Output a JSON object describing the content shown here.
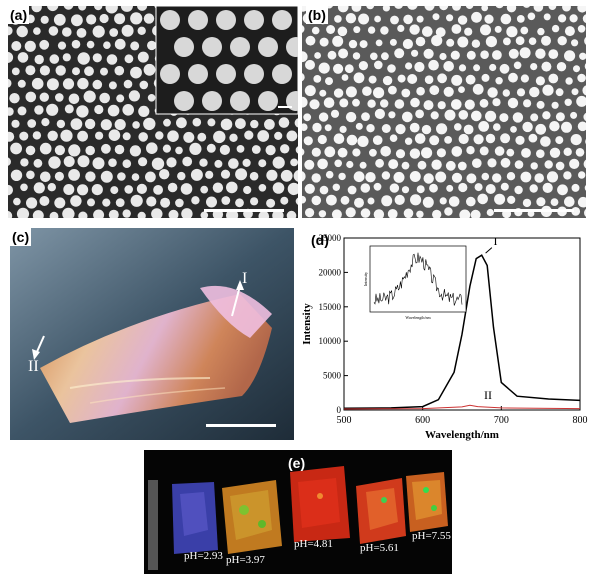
{
  "panels": {
    "a": {
      "label": "(a)"
    },
    "b": {
      "label": "(b)"
    },
    "c": {
      "label": "(c)",
      "marker_I": "I",
      "marker_II": "II"
    },
    "d": {
      "label": "(d)"
    },
    "e": {
      "label": "(e)"
    }
  },
  "chart_data": {
    "type": "line",
    "xlabel": "Wavelength/nm",
    "ylabel": "Intensity",
    "xlim": [
      500,
      800
    ],
    "ylim": [
      0,
      25000
    ],
    "xticks": [
      500,
      600,
      700,
      800
    ],
    "yticks": [
      0,
      5000,
      10000,
      15000,
      20000,
      25000
    ],
    "series": [
      {
        "name": "I",
        "x": [
          500,
          560,
          600,
          620,
          640,
          650,
          660,
          668,
          675,
          682,
          690,
          700,
          720,
          760,
          800
        ],
        "values": [
          250,
          300,
          500,
          1500,
          5500,
          11000,
          18000,
          22000,
          22500,
          21000,
          12000,
          4000,
          2000,
          1600,
          1400
        ]
      },
      {
        "name": "II",
        "x": [
          500,
          600,
          650,
          660,
          670,
          700,
          800
        ],
        "values": [
          150,
          200,
          450,
          700,
          500,
          300,
          200
        ]
      }
    ],
    "inset": {
      "ylabel": "Intensity",
      "xlabel": "Wavelength/nm"
    }
  },
  "ph_labels": [
    "pH=2.93",
    "pH=3.97",
    "pH=4.81",
    "pH=5.61",
    "pH=7.55"
  ],
  "colors": {
    "axis": "#000000",
    "curve_I": "#000000",
    "curve_II": "#cc3333"
  }
}
